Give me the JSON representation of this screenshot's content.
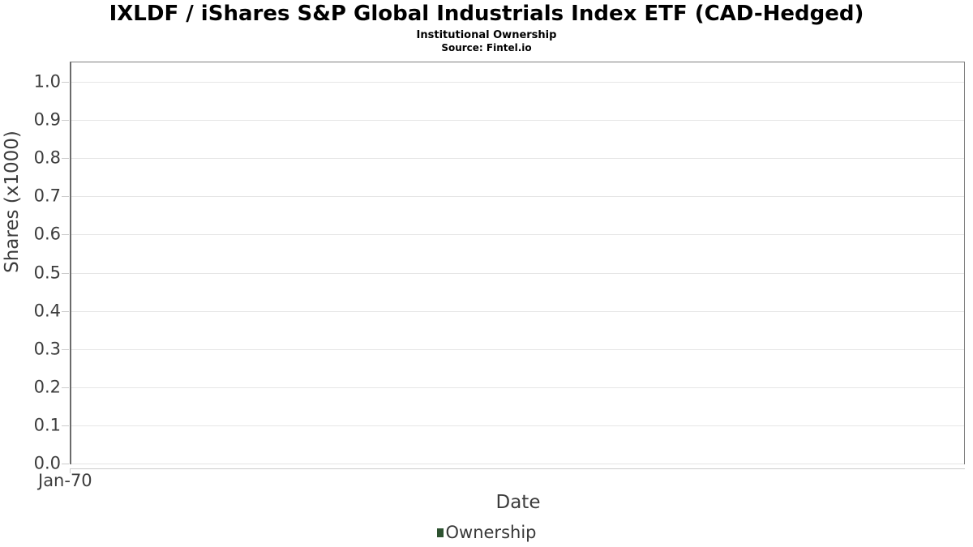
{
  "header": {
    "title": "IXLDF / iShares S&P Global Industrials Index ETF (CAD-Hedged)",
    "subtitle": "Institutional Ownership",
    "source": "Source: Fintel.io"
  },
  "chart_data": {
    "type": "line",
    "title": "IXLDF / iShares S&P Global Industrials Index ETF (CAD-Hedged)",
    "subtitle": "Institutional Ownership",
    "source": "Source: Fintel.io",
    "xlabel": "Date",
    "ylabel": "Shares (x1000)",
    "ylim": [
      0,
      1.051
    ],
    "grid": true,
    "y_ticks": [
      {
        "value": 0.0,
        "label": "0.0"
      },
      {
        "value": 0.1,
        "label": "0.1"
      },
      {
        "value": 0.2,
        "label": "0.2"
      },
      {
        "value": 0.3,
        "label": "0.3"
      },
      {
        "value": 0.4,
        "label": "0.4"
      },
      {
        "value": 0.5,
        "label": "0.5"
      },
      {
        "value": 0.6,
        "label": "0.6"
      },
      {
        "value": 0.7,
        "label": "0.7"
      },
      {
        "value": 0.8,
        "label": "0.8"
      },
      {
        "value": 0.9,
        "label": "0.9"
      },
      {
        "value": 1.0,
        "label": "1.0"
      }
    ],
    "x_tick_labels": [
      "Jan-70"
    ],
    "legend": {
      "position": "bottom",
      "entries": [
        {
          "label": "Ownership",
          "color": "#2d5230"
        }
      ]
    },
    "series": [
      {
        "name": "Ownership",
        "color": "#2d5230",
        "points": []
      }
    ]
  },
  "colors": {
    "grid": "#e6e6e6",
    "tick": "#cccccc",
    "plot_border": "#808080",
    "axis_line": "#6b6b6b",
    "text": "#3c3c3c",
    "title_text": "#000000",
    "background": "#ffffff"
  }
}
